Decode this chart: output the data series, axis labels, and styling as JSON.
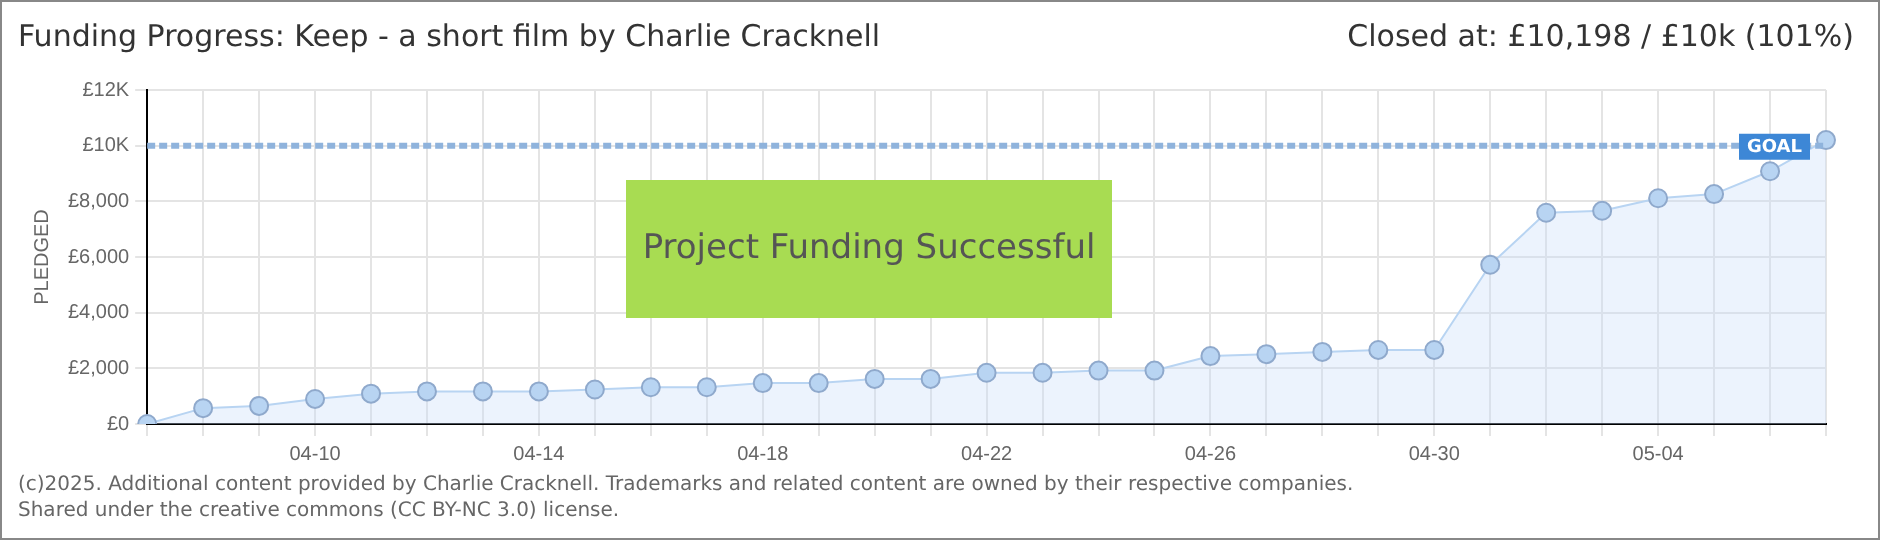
{
  "chart_data": {
    "type": "area",
    "title": "Funding Progress: Keep - a short film by Charlie Cracknell",
    "subtitle": "Closed at:  £10,198 /  £10k (101%)",
    "ylabel": "PLEDGED",
    "categories": [
      null,
      null,
      null,
      "04-10",
      null,
      null,
      null,
      "04-14",
      null,
      null,
      null,
      "04-18",
      null,
      null,
      null,
      "04-22",
      null,
      null,
      null,
      "04-26",
      null,
      null,
      null,
      "04-30",
      null,
      null,
      null,
      "05-04",
      null,
      null,
      null
    ],
    "series": [
      {
        "color": "#b8d4f2",
        "values": [
          0,
          570,
          650,
          900,
          1090,
          1170,
          1170,
          1170,
          1240,
          1320,
          1320,
          1470,
          1470,
          1620,
          1620,
          1840,
          1840,
          1920,
          1920,
          2440,
          2510,
          2590,
          2660,
          2660,
          5720,
          7590,
          7660,
          8110,
          8260,
          9080,
          10200
        ]
      }
    ],
    "ylim": [
      0,
      12000
    ],
    "yticks": [
      {
        "value": 0,
        "label": "£0"
      },
      {
        "value": 2000,
        "label": "£2,000"
      },
      {
        "value": 4000,
        "label": "£4,000"
      },
      {
        "value": 6000,
        "label": "£6,000"
      },
      {
        "value": 8000,
        "label": "£8,000"
      },
      {
        "value": 10000,
        "label": "£10K"
      },
      {
        "value": 12000,
        "label": "£12K"
      }
    ],
    "ref_lines": [
      {
        "axis": "y",
        "value": 10000,
        "label": "GOAL",
        "color": "#8fb3dc",
        "line_style": "dashed"
      }
    ],
    "annotations": [
      "Project Funding Successful",
      "(c)2025. Additional content provided by Charlie Cracknell. Trademarks and related content are owned by their respective companies.",
      "Shared under the creative commons (CC BY-NC 3.0) license."
    ],
    "grid": true,
    "legend": false,
    "marker": "circle",
    "line_style": "solid"
  }
}
